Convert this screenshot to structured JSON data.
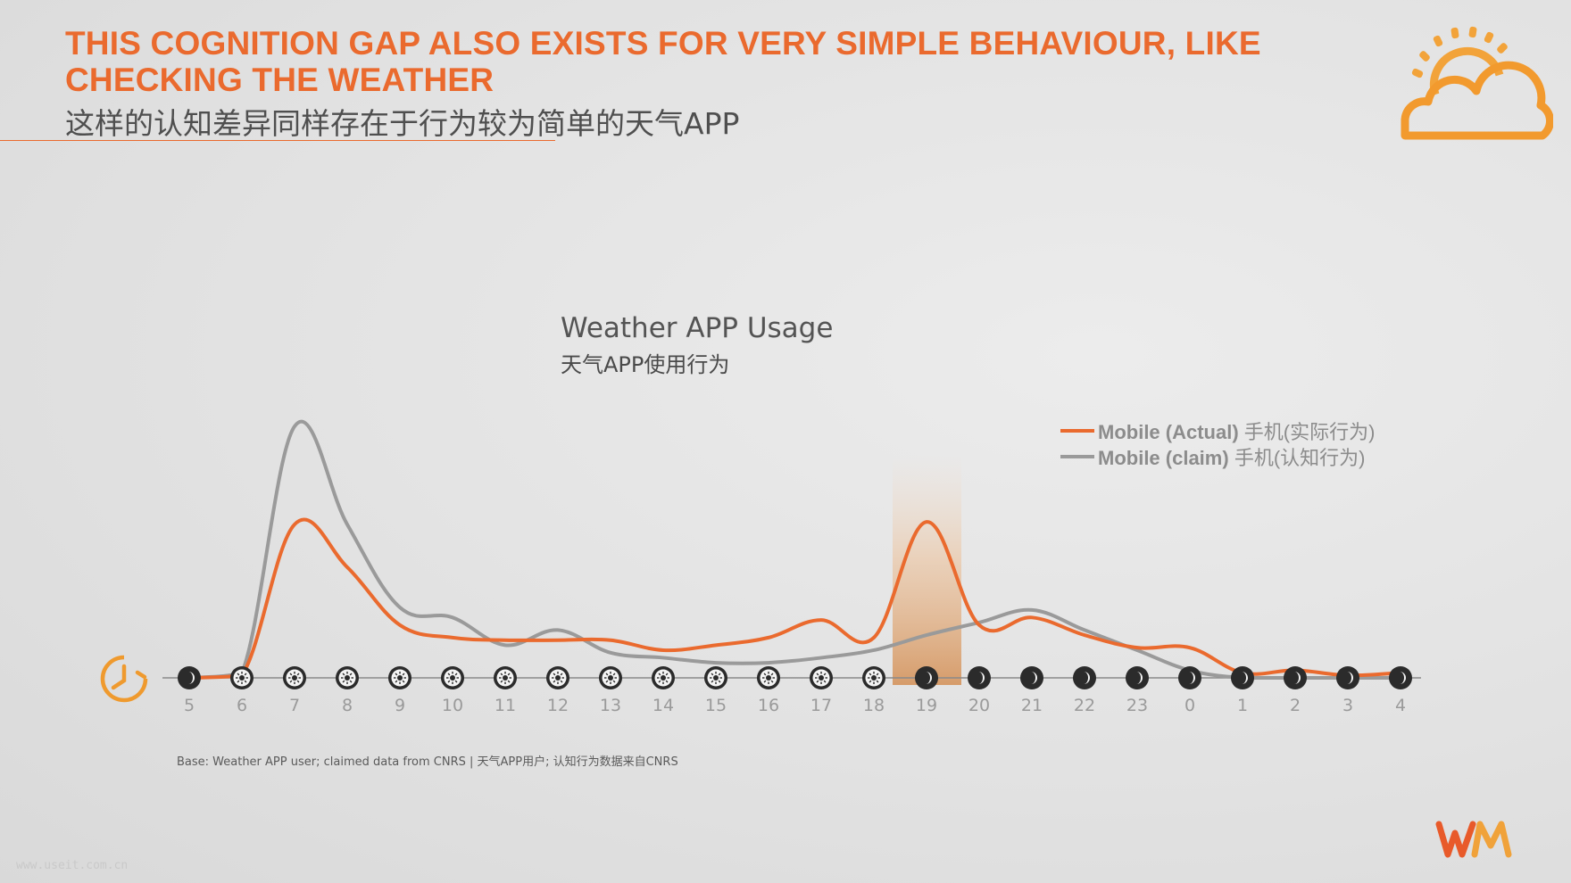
{
  "header": {
    "title_en": "THIS COGNITION GAP ALSO EXISTS FOR VERY SIMPLE BEHAVIOUR, LIKE CHECKING THE WEATHER",
    "title_cn": "这样的认知差异同样存在于行为较为简单的天气APP"
  },
  "footnote": "Base: Weather APP user; claimed data from CNRS | 天气APP用户; 认知行为数据来自CNRS",
  "watermark": "www.useit.com.cn",
  "icons": {
    "weather": "sun-behind-cloud-icon",
    "clock": "clock-icon",
    "logo": "wm-logo-icon",
    "day": "sun-icon",
    "night": "moon-icon"
  },
  "colors": {
    "accent": "#ea6a2e",
    "actual": "#ea6a2e",
    "claim": "#9a9a9a",
    "dark_marker": "#2b2b2b",
    "highlight": "#d9a070"
  },
  "chart_data": {
    "type": "line",
    "title": "Weather APP Usage",
    "subtitle": "天气APP使用行为",
    "xlabel": "",
    "ylabel": "",
    "categories": [
      "5",
      "6",
      "7",
      "8",
      "9",
      "10",
      "11",
      "12",
      "13",
      "14",
      "15",
      "16",
      "17",
      "18",
      "19",
      "20",
      "21",
      "22",
      "23",
      "0",
      "1",
      "2",
      "3",
      "4"
    ],
    "day_night": [
      "night",
      "day",
      "day",
      "day",
      "day",
      "day",
      "day",
      "day",
      "day",
      "day",
      "day",
      "day",
      "day",
      "day",
      "night",
      "night",
      "night",
      "night",
      "night",
      "night",
      "night",
      "night",
      "night",
      "night"
    ],
    "highlight_category": "19",
    "ylim": [
      0,
      100
    ],
    "grid": false,
    "legend_position": "top-right",
    "series": [
      {
        "name": "Mobile (Actual)",
        "name_cn": "手机(实际行为)",
        "color": "#ea6a2e",
        "values": [
          0,
          1,
          61,
          44,
          21,
          16,
          15,
          15,
          15,
          11,
          13,
          16,
          23,
          16,
          62,
          21,
          24,
          17,
          12,
          12,
          2,
          3,
          1,
          2
        ]
      },
      {
        "name": "Mobile (claim)",
        "name_cn": "手机(认知行为)",
        "color": "#9a9a9a",
        "values": [
          0,
          2,
          100,
          61,
          28,
          24,
          13,
          19,
          10,
          8,
          6,
          6,
          8,
          11,
          17,
          22,
          27,
          19,
          11,
          3,
          0,
          0,
          0,
          0
        ]
      }
    ]
  }
}
